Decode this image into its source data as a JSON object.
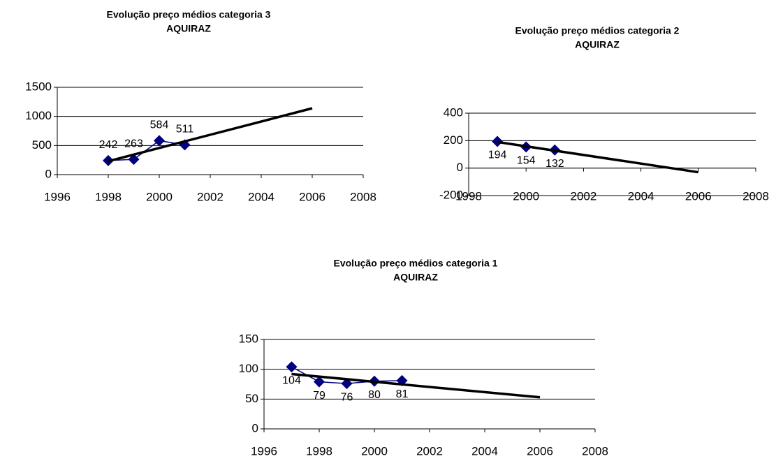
{
  "chart_data": [
    {
      "type": "line",
      "title": "Evolução preço médios categoria 3",
      "subtitle": "AQUIRAZ",
      "x": [
        1998,
        1999,
        2000,
        2001
      ],
      "series": [
        {
          "color": "#000080",
          "values": [
            242,
            263,
            584,
            511
          ]
        }
      ],
      "trendline": {
        "color": "#000000",
        "x": [
          1998,
          2006
        ],
        "values": [
          230,
          1140
        ]
      },
      "xlim": [
        1996,
        2008
      ],
      "xticks": [
        1996,
        1998,
        2000,
        2002,
        2004,
        2006,
        2008
      ],
      "ylim": [
        0,
        1500
      ],
      "yticks": [
        0,
        500,
        1000,
        1500
      ],
      "grid": true,
      "marker": "diamond",
      "label_position": "above"
    },
    {
      "type": "line",
      "title": "Evolução preço médios categoria 2",
      "subtitle": "AQUIRAZ",
      "x": [
        1999,
        2000,
        2001
      ],
      "series": [
        {
          "color": "#000080",
          "values": [
            194,
            154,
            132
          ]
        }
      ],
      "trendline": {
        "color": "#000000",
        "x": [
          1999,
          2006
        ],
        "values": [
          190,
          -30
        ]
      },
      "xlim": [
        1998,
        2008
      ],
      "xticks": [
        1998,
        2000,
        2002,
        2004,
        2006,
        2008
      ],
      "ylim": [
        -200,
        400
      ],
      "yticks": [
        -200,
        0,
        200,
        400
      ],
      "grid": true,
      "marker": "diamond",
      "label_position": "below"
    },
    {
      "type": "line",
      "title": "Evolução preço médios categoria 1",
      "subtitle": "AQUIRAZ",
      "x": [
        1997,
        1998,
        1999,
        2000,
        2001
      ],
      "series": [
        {
          "color": "#000080",
          "values": [
            104,
            79,
            76,
            80,
            81
          ]
        }
      ],
      "trendline": {
        "color": "#000000",
        "x": [
          1997,
          2006
        ],
        "values": [
          92,
          53
        ]
      },
      "xlim": [
        1996,
        2008
      ],
      "xticks": [
        1996,
        1998,
        2000,
        2002,
        2004,
        2006,
        2008
      ],
      "ylim": [
        0,
        150
      ],
      "yticks": [
        0,
        50,
        100,
        150
      ],
      "grid": true,
      "marker": "diamond",
      "label_position": "below"
    }
  ]
}
